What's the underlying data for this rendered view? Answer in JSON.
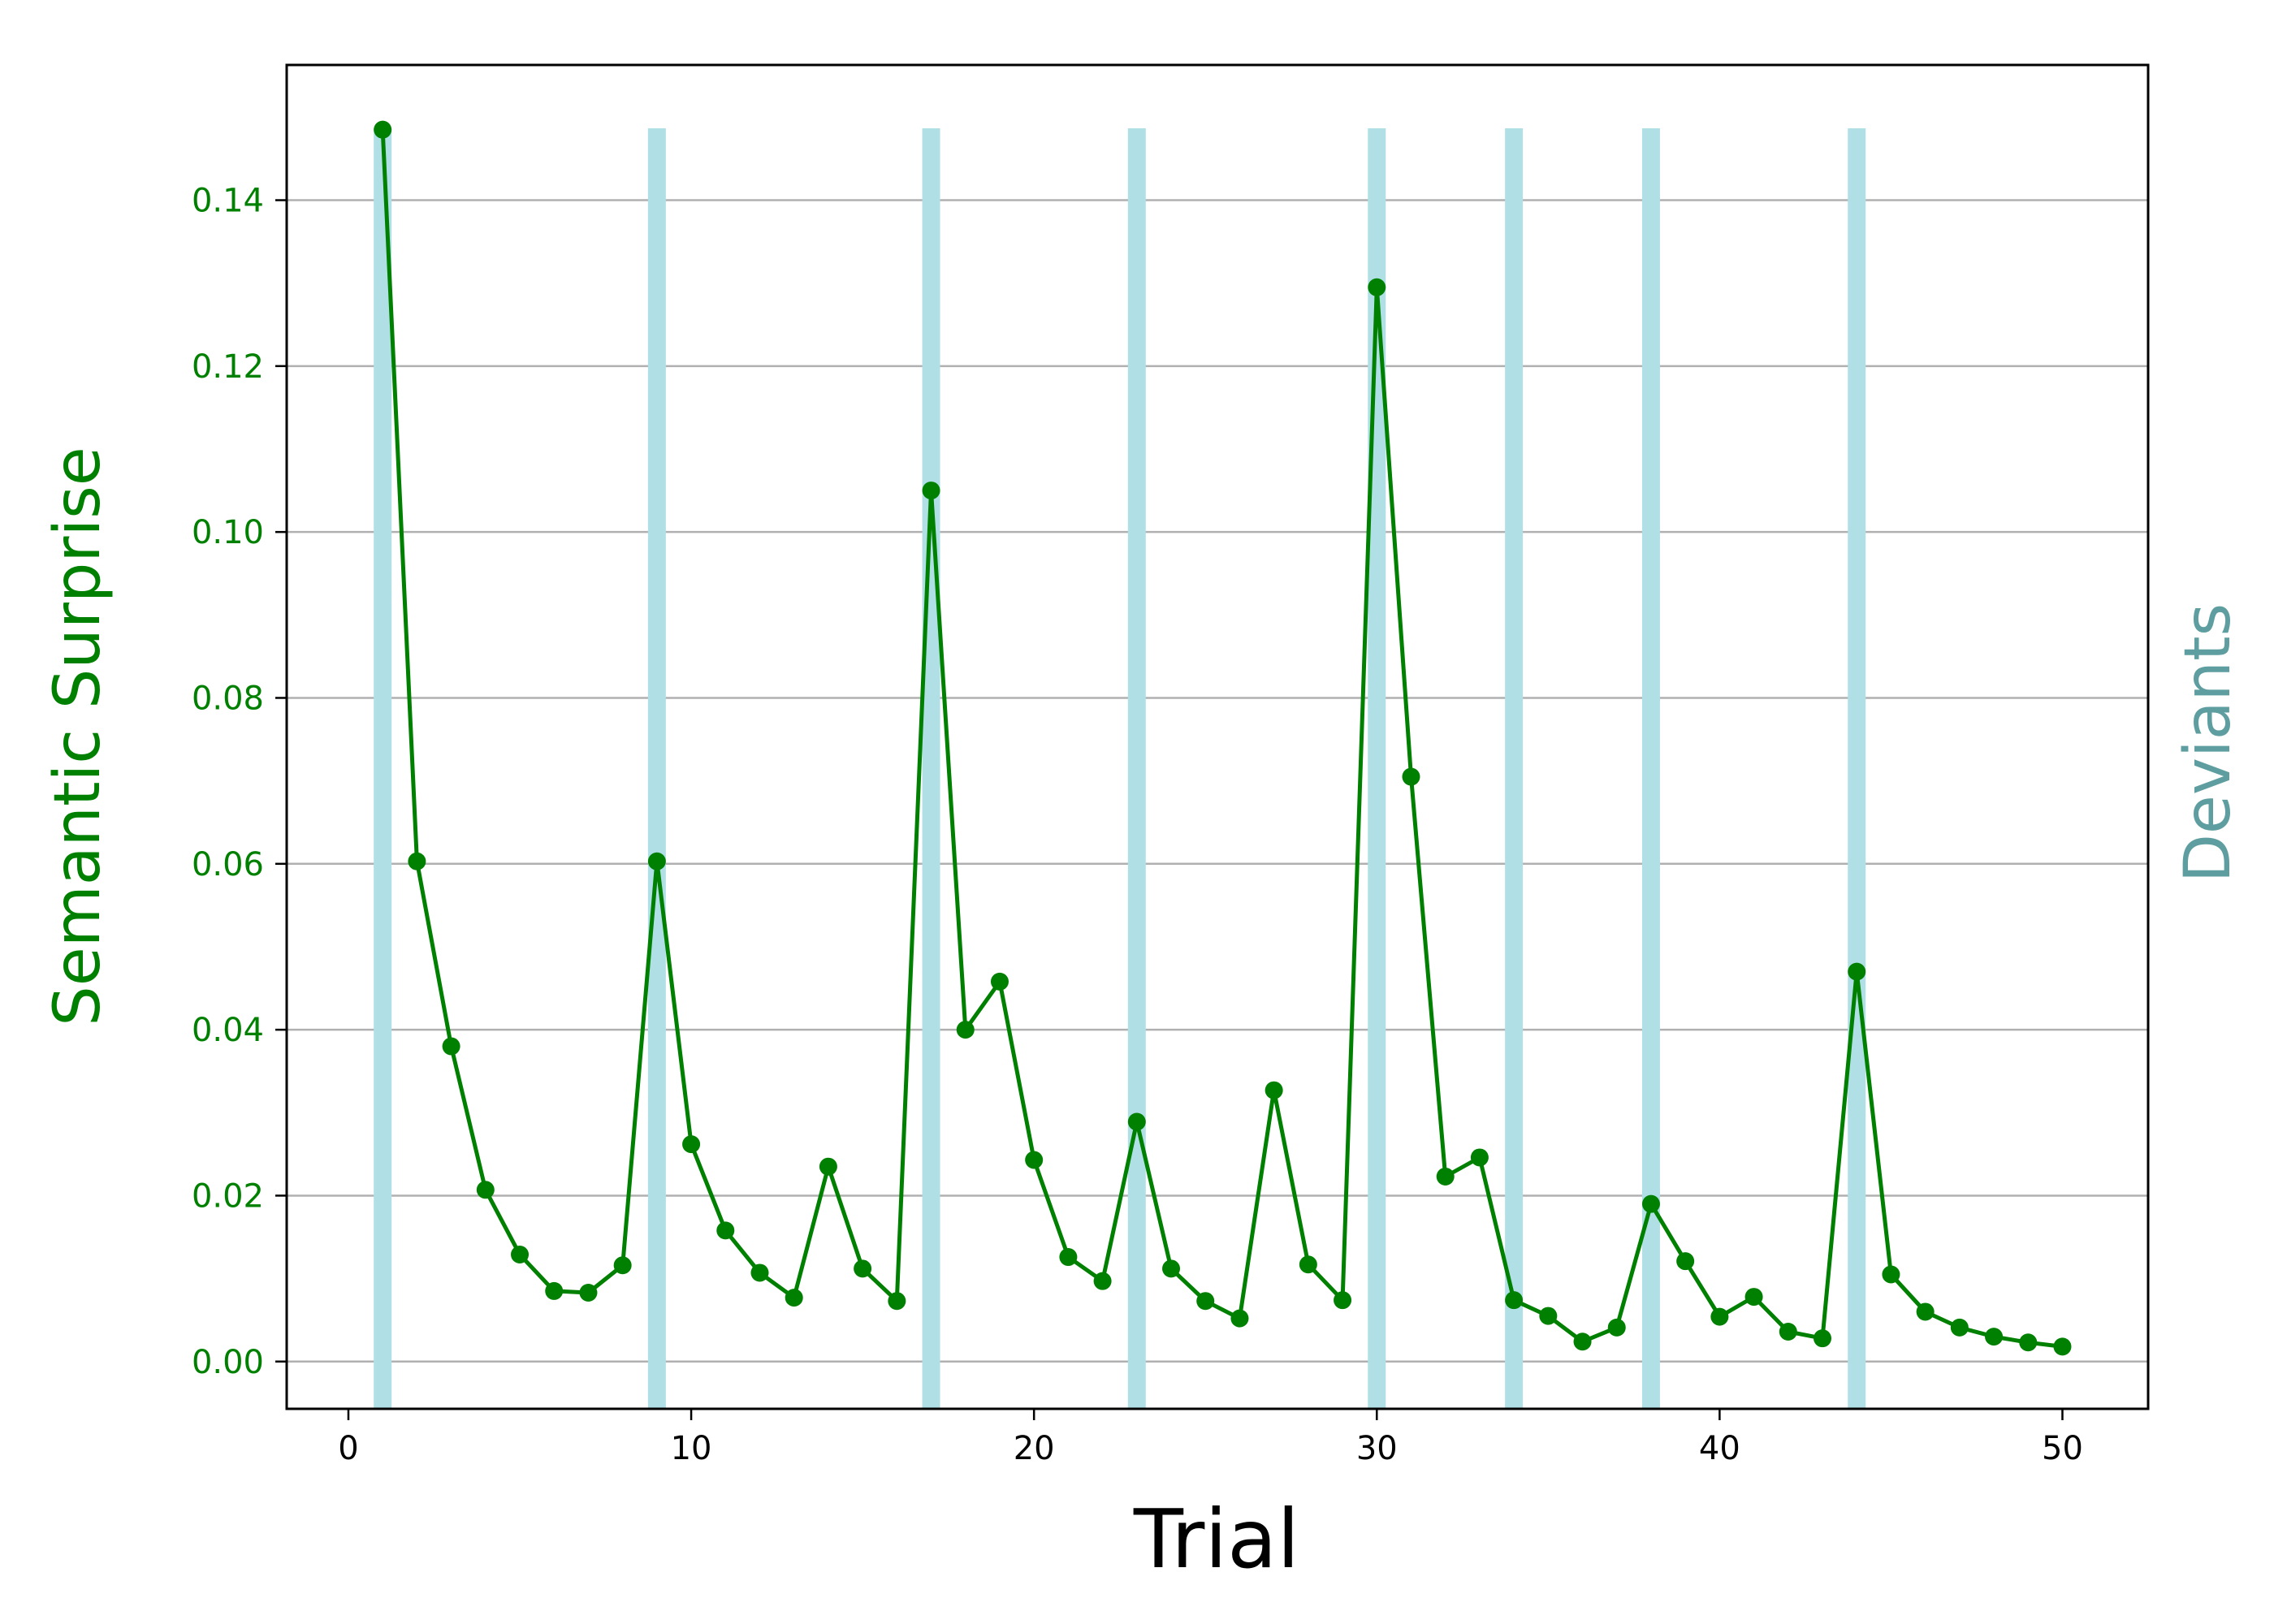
{
  "chart_data": {
    "type": "line",
    "xlabel": "Trial",
    "ylabel": "Semantic Surprise",
    "ylabel_right": "Deviants",
    "xlim": [
      -1.8,
      52.5
    ],
    "ylim": [
      -0.0057,
      0.1563
    ],
    "xticks": [
      0,
      10,
      20,
      30,
      40,
      50
    ],
    "yticks": [
      0.0,
      0.02,
      0.04,
      0.06,
      0.08,
      0.1,
      0.12,
      0.14
    ],
    "ytick_labels": [
      "0.00",
      "0.02",
      "0.04",
      "0.06",
      "0.08",
      "0.10",
      "0.12",
      "0.14"
    ],
    "grid": "horizontal",
    "deviant_trials": [
      1,
      9,
      17,
      23,
      30,
      34,
      38,
      44
    ],
    "series": [
      {
        "x": [
          1,
          2,
          3,
          4,
          5,
          6,
          7,
          8,
          9,
          10,
          11,
          12,
          13,
          14,
          15,
          16,
          17,
          18,
          19,
          20,
          21,
          22,
          23,
          24,
          25,
          26,
          27,
          28,
          29,
          30,
          31,
          32,
          33,
          34,
          35,
          36,
          37,
          38,
          39,
          40,
          41,
          42,
          43,
          44,
          45,
          46,
          47,
          48,
          49,
          50
        ],
        "values": [
          0.1485,
          0.0603,
          0.038,
          0.0207,
          0.0129,
          0.0085,
          0.0083,
          0.0116,
          0.0603,
          0.0262,
          0.0158,
          0.0107,
          0.0077,
          0.0235,
          0.0112,
          0.0073,
          0.105,
          0.04,
          0.0458,
          0.0243,
          0.0126,
          0.0097,
          0.0289,
          0.0112,
          0.0073,
          0.0052,
          0.0327,
          0.0117,
          0.0074,
          0.1295,
          0.0705,
          0.0223,
          0.0246,
          0.0074,
          0.0055,
          0.0024,
          0.0041,
          0.019,
          0.0121,
          0.0054,
          0.0078,
          0.0036,
          0.0028,
          0.047,
          0.0105,
          0.006,
          0.0041,
          0.003,
          0.0023,
          0.0018
        ]
      }
    ],
    "colors": {
      "line": "#008000",
      "deviant_band": "#b0e0e6",
      "right_label": "#5f9ea0",
      "grid": "#b0b0b0",
      "axis": "#000000"
    }
  }
}
